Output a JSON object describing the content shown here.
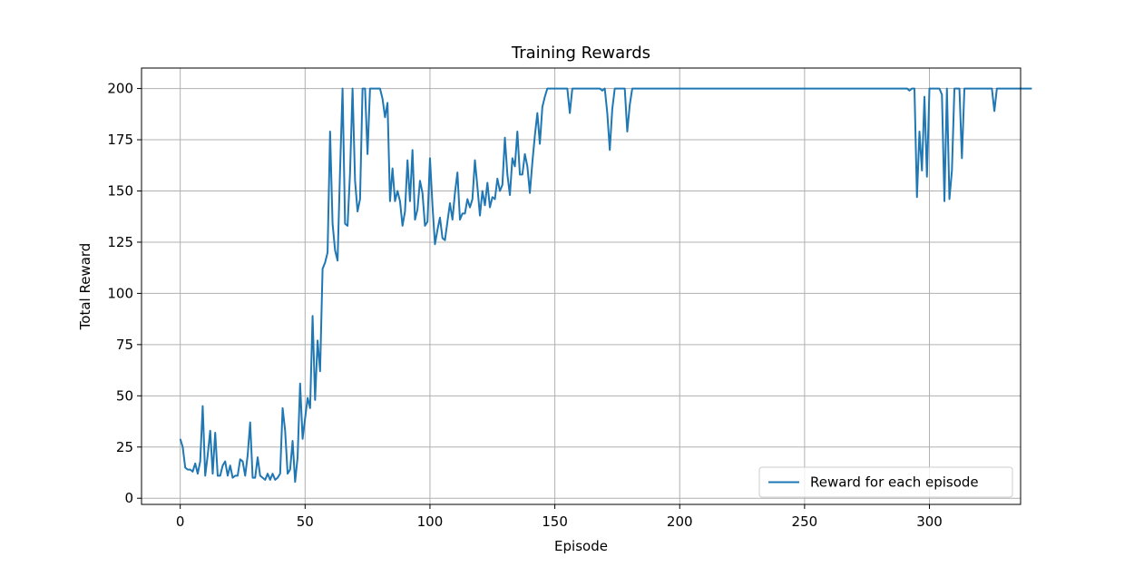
{
  "chart_data": {
    "type": "line",
    "title": "Training Rewards",
    "xlabel": "Episode",
    "ylabel": "Total Reward",
    "xlim": [
      -15.5,
      336.5
    ],
    "ylim": [
      -3,
      210
    ],
    "xticks": [
      0,
      50,
      100,
      150,
      200,
      250,
      300
    ],
    "yticks": [
      0,
      25,
      50,
      75,
      100,
      125,
      150,
      175,
      200
    ],
    "grid": true,
    "legend_position": "bottom-right",
    "series": [
      {
        "name": "Reward for each episode",
        "color": "#1f77b4",
        "values": [
          29,
          25,
          15,
          14,
          14,
          13,
          17,
          12,
          18,
          45,
          11,
          21,
          33,
          12,
          32,
          11,
          11,
          16,
          18,
          11,
          16,
          10,
          11,
          11,
          19,
          18,
          11,
          21,
          37,
          10,
          10,
          20,
          11,
          10,
          9,
          12,
          9,
          12,
          9,
          10,
          12,
          44,
          33,
          12,
          14,
          28,
          8,
          20,
          56,
          29,
          39,
          49,
          44,
          89,
          48,
          77,
          62,
          112,
          115,
          120,
          179,
          134,
          121,
          116,
          160,
          200,
          134,
          133,
          159,
          200,
          155,
          140,
          146,
          200,
          200,
          168,
          200,
          200,
          200,
          200,
          200,
          195,
          186,
          193,
          145,
          161,
          145,
          150,
          145,
          133,
          140,
          165,
          145,
          170,
          136,
          141,
          155,
          149,
          133,
          135,
          166,
          143,
          124,
          131,
          137,
          127,
          126,
          135,
          144,
          136,
          149,
          159,
          136,
          139,
          139,
          146,
          142,
          146,
          165,
          152,
          138,
          150,
          143,
          154,
          142,
          147,
          146,
          156,
          150,
          153,
          176,
          158,
          148,
          166,
          162,
          179,
          158,
          158,
          168,
          162,
          149,
          164,
          177,
          188,
          173,
          191,
          196,
          200,
          200,
          200,
          200,
          200,
          200,
          200,
          200,
          200,
          188,
          200,
          200,
          200,
          200,
          200,
          200,
          200,
          200,
          200,
          200,
          200,
          200,
          199,
          200,
          188,
          170,
          190,
          200,
          200,
          200,
          200,
          200,
          179,
          192,
          200,
          200,
          200,
          200,
          200,
          200,
          200,
          200,
          200,
          200,
          200,
          200,
          200,
          200,
          200,
          200,
          200,
          200,
          200,
          200,
          200,
          200,
          200,
          200,
          200,
          200,
          200,
          200,
          200,
          200,
          200,
          200,
          200,
          200,
          200,
          200,
          200,
          200,
          200,
          200,
          200,
          200,
          200,
          200,
          200,
          200,
          200,
          200,
          200,
          200,
          200,
          200,
          200,
          200,
          200,
          200,
          200,
          200,
          200,
          200,
          200,
          200,
          200,
          200,
          200,
          200,
          200,
          200,
          200,
          200,
          200,
          200,
          200,
          200,
          200,
          200,
          200,
          200,
          200,
          200,
          200,
          200,
          200,
          200,
          200,
          200,
          200,
          200,
          200,
          200,
          200,
          200,
          200,
          200,
          200,
          200,
          200,
          200,
          200,
          200,
          200,
          200,
          200,
          200,
          200,
          200,
          200,
          200,
          200,
          200,
          200,
          199,
          200,
          200,
          147,
          179,
          160,
          196,
          157,
          200,
          200,
          200,
          200,
          200,
          197,
          145,
          200,
          146,
          160,
          200,
          200,
          200,
          166,
          200,
          200,
          200,
          200,
          200,
          200,
          200,
          200,
          200,
          200,
          200,
          200,
          189,
          200,
          200,
          200,
          200,
          200,
          200,
          200,
          200,
          200,
          200,
          200,
          200,
          200,
          200,
          200
        ]
      }
    ]
  }
}
